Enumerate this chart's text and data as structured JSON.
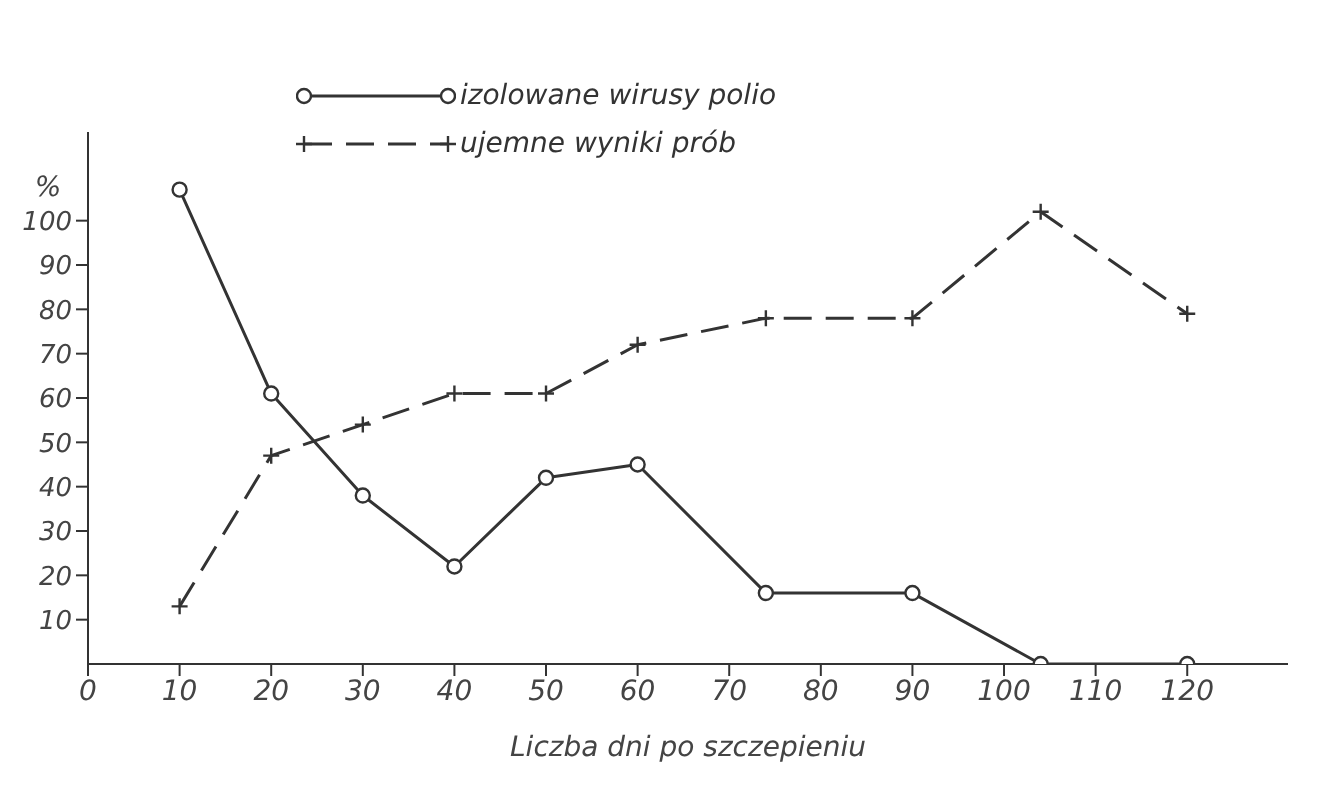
{
  "chart_data": {
    "type": "line",
    "xlabel": "Liczba dni po szczepieniu",
    "ylabel": "%",
    "series": [
      {
        "name": "izolowane wirusy polio",
        "color": "#333333",
        "marker": "circle",
        "line_style": "solid",
        "x": [
          10,
          20,
          30,
          40,
          50,
          60,
          74,
          90,
          104,
          120
        ],
        "values": [
          107,
          61,
          38,
          22,
          42,
          45,
          16,
          16,
          0,
          0
        ]
      },
      {
        "name": "ujemne wyniki prób",
        "color": "#333333",
        "marker": "cross",
        "line_style": "dashed",
        "x": [
          10,
          20,
          30,
          40,
          50,
          60,
          74,
          90,
          104,
          120
        ],
        "values": [
          13,
          47,
          54,
          61,
          61,
          72,
          78,
          78,
          102,
          79
        ]
      }
    ],
    "xlim": [
      0,
      131
    ],
    "xticks": [
      0,
      10,
      20,
      30,
      40,
      50,
      60,
      70,
      80,
      90,
      100,
      110,
      120
    ],
    "ylim": [
      0,
      120
    ],
    "yticks": [
      10,
      20,
      30,
      40,
      50,
      60,
      70,
      80,
      90,
      100
    ],
    "grid": false,
    "legend": "top"
  }
}
